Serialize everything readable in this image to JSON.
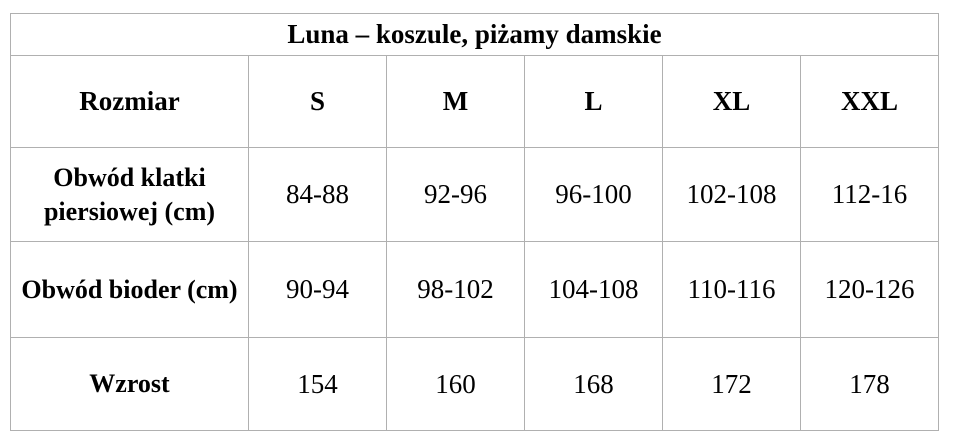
{
  "title": "Luna – koszule, piżamy damskie",
  "table": {
    "columns": [
      "Rozmiar",
      "S",
      "M",
      "L",
      "XL",
      "XXL"
    ],
    "rows": [
      {
        "label": "Obwód klatki piersiowej (cm)",
        "values": [
          "84-88",
          "92-96",
          "96-100",
          "102-108",
          "112-16"
        ]
      },
      {
        "label": "Obwód bioder (cm)",
        "values": [
          "90-94",
          "98-102",
          "104-108",
          "110-116",
          "120-126"
        ]
      },
      {
        "label": "Wzrost",
        "values": [
          "154",
          "160",
          "168",
          "172",
          "178"
        ]
      }
    ]
  },
  "colors": {
    "border": "#b0b0b0",
    "text": "#000000",
    "background": "#ffffff"
  }
}
